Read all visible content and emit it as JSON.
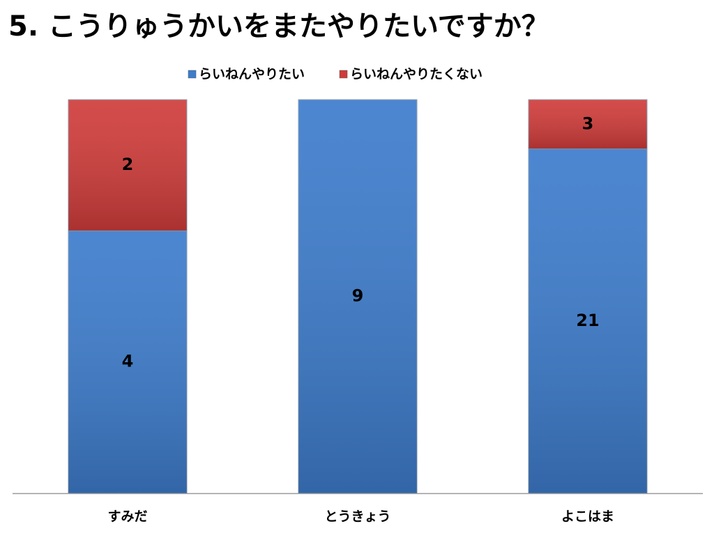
{
  "chart_data": {
    "type": "bar",
    "stacking": "percent",
    "title": "5. こうりゅうかいをまたやりたいですか？",
    "categories": [
      "すみだ",
      "とうきょう",
      "よこはま"
    ],
    "series": [
      {
        "name": "らいねんやりたい",
        "color": "#3d7ccc",
        "values": [
          4,
          9,
          21
        ]
      },
      {
        "name": "らいねんやりたくない",
        "color": "#cf3c3a",
        "values": [
          2,
          null,
          3
        ]
      }
    ],
    "legend": "top"
  }
}
